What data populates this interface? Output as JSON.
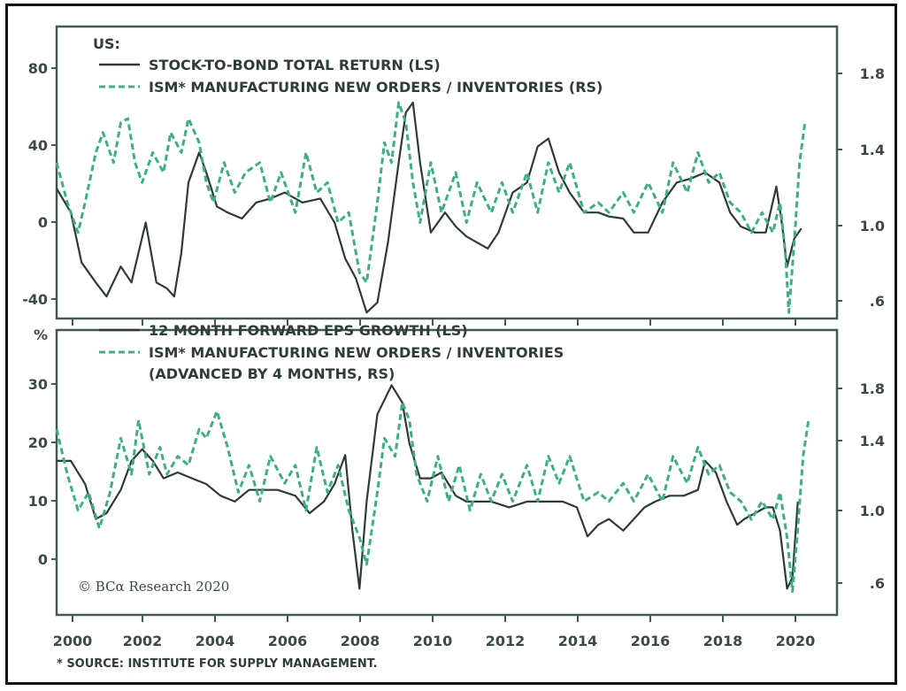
{
  "colors": {
    "solid": "#2e3a37",
    "dashed": "#3fae85",
    "axis": "#3f5a52"
  },
  "chart_data": [
    {
      "type": "line",
      "region": "US:",
      "x_ticks": [
        "2000",
        "2002",
        "2004",
        "2006",
        "2008",
        "2010",
        "2012",
        "2014",
        "2016",
        "2018",
        "2020"
      ],
      "x_range": [
        1999.8,
        2021.7
      ],
      "y_left_ticks": [
        "80",
        "40",
        "0",
        "-40"
      ],
      "y_left_range": [
        -48,
        98
      ],
      "y_right_ticks": [
        "1.8",
        "1.4",
        "1.0",
        ".6"
      ],
      "y_right_range": [
        0.52,
        1.98
      ],
      "series": [
        {
          "name": "STOCK-TO-BOND TOTAL RETURN (LS)",
          "axis": "left",
          "style": "solid",
          "x": [
            1999.8,
            2000.2,
            2000.5,
            2000.9,
            2001.2,
            2001.6,
            2001.9,
            2002.1,
            2002.3,
            2002.6,
            2002.9,
            2003.1,
            2003.3,
            2003.5,
            2003.8,
            2004.0,
            2004.3,
            2004.6,
            2005.0,
            2005.4,
            2005.8,
            2006.2,
            2006.7,
            2007.2,
            2007.6,
            2007.9,
            2008.2,
            2008.5,
            2008.8,
            2009.1,
            2009.4,
            2009.6,
            2009.8,
            2010.0,
            2010.3,
            2010.7,
            2011.0,
            2011.3,
            2011.6,
            2011.9,
            2012.2,
            2012.6,
            2013.0,
            2013.3,
            2013.6,
            2013.9,
            2014.2,
            2014.6,
            2015.0,
            2015.3,
            2015.7,
            2016.0,
            2016.4,
            2016.8,
            2017.2,
            2017.6,
            2018.0,
            2018.4,
            2018.7,
            2019.0,
            2019.4,
            2019.7,
            2020.0,
            2020.15,
            2020.3,
            2020.5,
            2020.7
          ],
          "y": [
            17,
            5,
            -20,
            -30,
            -37,
            -22,
            -30,
            -15,
            0,
            -30,
            -33,
            -37,
            -15,
            20,
            35,
            25,
            8,
            5,
            2,
            10,
            12,
            15,
            10,
            12,
            0,
            -18,
            -28,
            -45,
            -40,
            -10,
            30,
            55,
            60,
            30,
            -5,
            5,
            -2,
            -7,
            -10,
            -13,
            -5,
            15,
            20,
            38,
            42,
            25,
            15,
            5,
            5,
            3,
            2,
            -5,
            -5,
            10,
            20,
            22,
            25,
            20,
            5,
            -2,
            -5,
            -5,
            18,
            0,
            -22,
            -8,
            -3
          ]
        },
        {
          "name": "ISM* MANUFACTURING NEW ORDERS / INVENTORIES (RS)",
          "axis": "right",
          "style": "dashed",
          "x": [
            1999.8,
            2000.1,
            2000.4,
            2000.6,
            2000.9,
            2001.1,
            2001.4,
            2001.6,
            2001.8,
            2002.0,
            2002.2,
            2002.5,
            2002.8,
            2003.0,
            2003.3,
            2003.5,
            2003.8,
            2004.0,
            2004.2,
            2004.5,
            2004.8,
            2005.1,
            2005.5,
            2005.8,
            2006.1,
            2006.5,
            2006.8,
            2007.1,
            2007.4,
            2007.7,
            2008.0,
            2008.3,
            2008.5,
            2008.8,
            2009.0,
            2009.2,
            2009.4,
            2009.6,
            2009.8,
            2010.0,
            2010.3,
            2010.6,
            2011.0,
            2011.3,
            2011.6,
            2012.0,
            2012.3,
            2012.6,
            2013.0,
            2013.3,
            2013.6,
            2013.9,
            2014.2,
            2014.6,
            2015.0,
            2015.3,
            2015.7,
            2016.0,
            2016.4,
            2016.8,
            2017.1,
            2017.5,
            2017.8,
            2018.1,
            2018.4,
            2018.7,
            2019.0,
            2019.3,
            2019.6,
            2019.9,
            2020.1,
            2020.25,
            2020.35,
            2020.5,
            2020.65,
            2020.8
          ],
          "y": [
            1.3,
            1.1,
            0.95,
            1.1,
            1.35,
            1.45,
            1.3,
            1.5,
            1.52,
            1.3,
            1.2,
            1.35,
            1.25,
            1.45,
            1.35,
            1.52,
            1.4,
            1.2,
            1.1,
            1.3,
            1.15,
            1.25,
            1.3,
            1.1,
            1.25,
            1.05,
            1.35,
            1.15,
            1.2,
            1.0,
            1.05,
            0.75,
            0.7,
            1.1,
            1.4,
            1.3,
            1.6,
            1.5,
            1.2,
            1.0,
            1.3,
            1.05,
            1.25,
            1.0,
            1.2,
            1.05,
            1.2,
            1.05,
            1.25,
            1.05,
            1.3,
            1.15,
            1.3,
            1.05,
            1.1,
            1.05,
            1.15,
            1.05,
            1.2,
            1.05,
            1.3,
            1.15,
            1.35,
            1.2,
            1.25,
            1.1,
            1.05,
            0.95,
            1.05,
            0.95,
            1.1,
            0.85,
            0.55,
            0.9,
            1.3,
            1.5
          ]
        }
      ]
    },
    {
      "type": "line",
      "x_ticks": [
        "2000",
        "2002",
        "2004",
        "2006",
        "2008",
        "2010",
        "2012",
        "2014",
        "2016",
        "2018",
        "2020"
      ],
      "x_range": [
        1999.8,
        2021.7
      ],
      "y_left_ticks": [
        "%",
        "30",
        "20",
        "10",
        "0"
      ],
      "y_left_range": [
        -9.5,
        39.5
      ],
      "y_right_ticks": [
        "1.8",
        "1.4",
        "1.0",
        ".6"
      ],
      "y_right_range": [
        0.42,
        2.0
      ],
      "series": [
        {
          "name": "12 MONTH FORWARD EPS GROWTH (LS)",
          "axis": "left",
          "style": "solid",
          "x": [
            1999.8,
            2000.2,
            2000.6,
            2000.9,
            2001.2,
            2001.6,
            2001.9,
            2002.2,
            2002.5,
            2002.8,
            2003.2,
            2003.6,
            2004.0,
            2004.4,
            2004.8,
            2005.2,
            2005.6,
            2006.0,
            2006.5,
            2006.9,
            2007.3,
            2007.6,
            2007.9,
            2008.1,
            2008.3,
            2008.5,
            2008.8,
            2009.2,
            2009.5,
            2009.7,
            2010.0,
            2010.3,
            2010.6,
            2011.0,
            2011.3,
            2011.6,
            2012.0,
            2012.5,
            2013.0,
            2013.5,
            2014.0,
            2014.4,
            2014.7,
            2015.0,
            2015.3,
            2015.7,
            2016.0,
            2016.3,
            2016.6,
            2017.0,
            2017.4,
            2017.8,
            2018.0,
            2018.3,
            2018.6,
            2018.9,
            2019.1,
            2019.4,
            2019.7,
            2019.9,
            2020.1,
            2020.3,
            2020.45,
            2020.6
          ],
          "y": [
            17,
            17,
            13,
            7,
            8,
            12,
            17,
            19,
            17,
            14,
            15,
            14,
            13,
            11,
            10,
            12,
            12,
            12,
            11,
            8,
            10,
            13,
            18,
            5,
            -5,
            10,
            25,
            30,
            27,
            20,
            14,
            14,
            15,
            11,
            10,
            10,
            10,
            9,
            10,
            10,
            10,
            9,
            4,
            6,
            7,
            5,
            7,
            9,
            10,
            11,
            11,
            12,
            17,
            15,
            10,
            6,
            7,
            8,
            9,
            9,
            5,
            -5,
            -3,
            10
          ]
        },
        {
          "name": "ISM* MANUFACTURING NEW ORDERS / INVENTORIES",
          "name_line2": "(ADVANCED BY 4 MONTHS, RS)",
          "axis": "right",
          "style": "dashed",
          "x": [
            1999.8,
            2000.1,
            2000.4,
            2000.7,
            2001.0,
            2001.3,
            2001.6,
            2001.9,
            2002.1,
            2002.4,
            2002.7,
            2002.9,
            2003.2,
            2003.5,
            2003.8,
            2004.0,
            2004.3,
            2004.6,
            2004.9,
            2005.2,
            2005.5,
            2005.8,
            2006.2,
            2006.5,
            2006.8,
            2007.1,
            2007.4,
            2007.7,
            2008.0,
            2008.3,
            2008.5,
            2008.8,
            2009.0,
            2009.3,
            2009.5,
            2009.7,
            2009.9,
            2010.2,
            2010.5,
            2010.8,
            2011.1,
            2011.4,
            2011.7,
            2012.0,
            2012.3,
            2012.6,
            2013.0,
            2013.3,
            2013.6,
            2013.9,
            2014.2,
            2014.6,
            2015.0,
            2015.3,
            2015.7,
            2016.0,
            2016.4,
            2016.8,
            2017.1,
            2017.5,
            2017.8,
            2018.1,
            2018.4,
            2018.7,
            2019.0,
            2019.3,
            2019.6,
            2019.9,
            2020.1,
            2020.3,
            2020.45,
            2020.6,
            2020.75,
            2020.9
          ],
          "y": [
            1.45,
            1.2,
            1.0,
            1.1,
            0.9,
            1.1,
            1.4,
            1.2,
            1.5,
            1.2,
            1.35,
            1.2,
            1.3,
            1.25,
            1.45,
            1.4,
            1.55,
            1.35,
            1.1,
            1.25,
            1.05,
            1.3,
            1.15,
            1.25,
            1.0,
            1.35,
            1.1,
            1.25,
            1.0,
            0.85,
            0.7,
            1.1,
            1.4,
            1.3,
            1.6,
            1.5,
            1.2,
            1.05,
            1.3,
            1.05,
            1.25,
            1.0,
            1.2,
            1.05,
            1.2,
            1.05,
            1.25,
            1.05,
            1.3,
            1.15,
            1.3,
            1.05,
            1.1,
            1.05,
            1.15,
            1.05,
            1.2,
            1.05,
            1.3,
            1.15,
            1.35,
            1.2,
            1.25,
            1.1,
            1.05,
            0.95,
            1.05,
            0.95,
            1.1,
            0.85,
            0.55,
            0.9,
            1.3,
            1.5
          ]
        }
      ]
    }
  ],
  "brand": "© BCα Research 2020",
  "source": "* SOURCE: INSTITUTE FOR SUPPLY MANAGEMENT."
}
